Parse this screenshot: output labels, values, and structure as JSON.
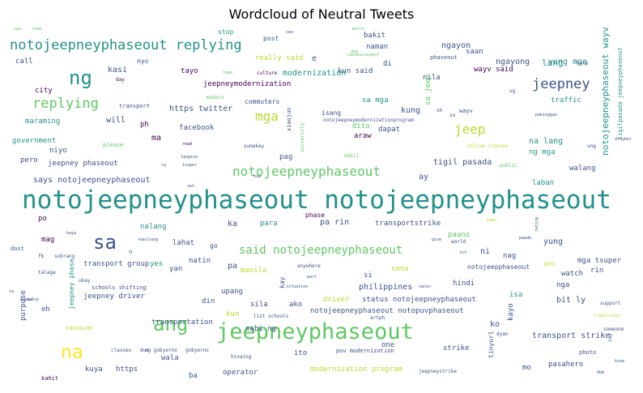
{
  "title": "Wordcloud of Neutral Tweets",
  "palette": [
    "#440154",
    "#3b528b",
    "#21918c",
    "#5ec962",
    "#b5de2b",
    "#fde725"
  ],
  "words": [
    {
      "text": "notojeepneyphaseout notojeepneyphaseout",
      "size": 31,
      "color": "#21918c"
    },
    {
      "text": "jeepneyphaseout",
      "size": 27,
      "color": "#5ec962"
    },
    {
      "text": "ang",
      "size": 24,
      "color": "#5ec962"
    },
    {
      "text": "sa",
      "size": 24,
      "color": "#3b528b"
    },
    {
      "text": "ng",
      "size": 24,
      "color": "#21918c"
    },
    {
      "text": "na",
      "size": 23,
      "color": "#fde725"
    },
    {
      "text": "notojeepneyphaseout replying",
      "size": 17,
      "color": "#21918c"
    },
    {
      "text": "replying",
      "size": 17,
      "color": "#5ec962"
    },
    {
      "text": "jeepney",
      "size": 17,
      "color": "#3b528b"
    },
    {
      "text": "jeep",
      "size": 16,
      "color": "#b5de2b"
    },
    {
      "text": "notojeepneyphaseout",
      "size": 16,
      "color": "#5ec962"
    },
    {
      "text": "said notojeepneyphaseout",
      "size": 14,
      "color": "#5ec962"
    },
    {
      "text": "mga",
      "size": 16,
      "color": "#b5de2b"
    },
    {
      "text": "notojeepneyphaseout wayv",
      "size": 11,
      "color": "#21918c"
    },
    {
      "text": "tigilpasada jeepneyphaseout",
      "size": 7,
      "color": "#21918c"
    },
    {
      "text": "yung mga",
      "size": 10,
      "color": "#21918c"
    },
    {
      "text": "ngayong",
      "size": 10,
      "color": "#3b528b"
    },
    {
      "text": "ngayon",
      "size": 10,
      "color": "#3b528b"
    },
    {
      "text": "saan",
      "size": 9,
      "color": "#3b528b"
    },
    {
      "text": "phaseout",
      "size": 7,
      "color": "#3b528b"
    },
    {
      "text": "bakit",
      "size": 9,
      "color": "#3b528b"
    },
    {
      "text": "naman",
      "size": 9,
      "color": "#3b528b"
    },
    {
      "text": "di",
      "size": 9,
      "color": "#3b528b"
    },
    {
      "text": "kun said",
      "size": 9,
      "color": "#3b528b"
    },
    {
      "text": "modernization",
      "size": 10,
      "color": "#21918c"
    },
    {
      "text": "jeepneymodernization",
      "size": 9,
      "color": "#440154"
    },
    {
      "text": "really said",
      "size": 9,
      "color": "#b5de2b"
    },
    {
      "text": "e",
      "size": 10,
      "color": "#3b528b"
    },
    {
      "text": "nakakaiungkot",
      "size": 5,
      "color": "#5ec962"
    },
    {
      "text": "dae",
      "size": 5,
      "color": "#5ec962"
    },
    {
      "text": "march",
      "size": 5,
      "color": "#5ec962"
    },
    {
      "text": "see",
      "size": 5,
      "color": "#3b528b"
    },
    {
      "text": "post",
      "size": 8,
      "color": "#3b528b"
    },
    {
      "text": "stop",
      "size": 8,
      "color": "#21918c"
    },
    {
      "text": "stem",
      "size": 5,
      "color": "#5ec962"
    },
    {
      "text": "call",
      "size": 9,
      "color": "#3b528b"
    },
    {
      "text": "nyo",
      "size": 8,
      "color": "#3b528b"
    },
    {
      "text": "kasi",
      "size": 10,
      "color": "#3b528b"
    },
    {
      "text": "tayo",
      "size": 9,
      "color": "#440154"
    },
    {
      "text": "tama",
      "size": 5,
      "color": "#5ec962"
    },
    {
      "text": "culture",
      "size": 6,
      "color": "#440154"
    },
    {
      "text": "day",
      "size": 6,
      "color": "#440154"
    },
    {
      "text": "city",
      "size": 9,
      "color": "#440154"
    },
    {
      "text": "https twitter",
      "size": 10,
      "color": "#3b528b"
    },
    {
      "text": "transport",
      "size": 7,
      "color": "#3b528b"
    },
    {
      "text": "will",
      "size": 10,
      "color": "#3b528b"
    },
    {
      "text": "maraming",
      "size": 9,
      "color": "#21918c"
    },
    {
      "text": "commuters",
      "size": 8,
      "color": "#3b528b"
    },
    {
      "text": "modern",
      "size": 6,
      "color": "#5ec962"
    },
    {
      "text": "xiaojun",
      "size": 7,
      "color": "#3b528b"
    },
    {
      "text": "university",
      "size": 6,
      "color": "#5ec962"
    },
    {
      "text": "isang",
      "size": 8,
      "color": "#3b528b"
    },
    {
      "text": "notojeepneymodernizationprogram",
      "size": 6,
      "color": "#3b528b"
    },
    {
      "text": "sa mga",
      "size": 9,
      "color": "#21918c"
    },
    {
      "text": "nila",
      "size": 9,
      "color": "#3b528b"
    },
    {
      "text": "sa jeep",
      "size": 9,
      "color": "#5ec962"
    },
    {
      "text": "kung",
      "size": 10,
      "color": "#3b528b"
    },
    {
      "text": "oh",
      "size": 6,
      "color": "#3b528b"
    },
    {
      "text": "so",
      "size": 6,
      "color": "#3b528b"
    },
    {
      "text": "wayv",
      "size": 7,
      "color": "#3b528b"
    },
    {
      "text": "wayv said",
      "size": 9,
      "color": "#440154"
    },
    {
      "text": "lang",
      "size": 11,
      "color": "#21918c"
    },
    {
      "text": "traffic",
      "size": 9,
      "color": "#21918c"
    },
    {
      "text": "ug",
      "size": 6,
      "color": "#3b528b"
    },
    {
      "text": "help",
      "size": 6,
      "color": "#3b528b"
    },
    {
      "text": "new",
      "size": 5,
      "color": "#5ec962"
    },
    {
      "text": "ph",
      "size": 9,
      "color": "#440154"
    },
    {
      "text": "facebook",
      "size": 9,
      "color": "#3b528b"
    },
    {
      "text": "ma",
      "size": 10,
      "color": "#440154"
    },
    {
      "text": "araw",
      "size": 9,
      "color": "#440154"
    },
    {
      "text": "dapat",
      "size": 9,
      "color": "#3b528b"
    },
    {
      "text": "dito",
      "size": 9,
      "color": "#5ec962"
    },
    {
      "text": "pakinggan",
      "size": 5,
      "color": "#3b528b"
    },
    {
      "text": "government",
      "size": 9,
      "color": "#21918c"
    },
    {
      "text": "please",
      "size": 7,
      "color": "#5ec962"
    },
    {
      "text": "read",
      "size": 5,
      "color": "#440154"
    },
    {
      "text": "sumakay",
      "size": 6,
      "color": "#3b528b"
    },
    {
      "text": "niyo",
      "size": 9,
      "color": "#3b528b"
    },
    {
      "text": "pero",
      "size": 9,
      "color": "#3b528b"
    },
    {
      "text": "jeepney phaseout",
      "size": 9,
      "color": "#3b528b"
    },
    {
      "text": "tangina",
      "size": 5,
      "color": "#3b528b"
    },
    {
      "text": "tsuper",
      "size": 5,
      "color": "#3b528b"
    },
    {
      "text": "ra",
      "size": 5,
      "color": "#3b528b"
    },
    {
      "text": "pag",
      "size": 9,
      "color": "#3b528b"
    },
    {
      "text": "dahil",
      "size": 6,
      "color": "#5ec962"
    },
    {
      "text": "online classes",
      "size": 6,
      "color": "#b5de2b"
    },
    {
      "text": "na lang",
      "size": 10,
      "color": "#21918c"
    },
    {
      "text": "ng mga",
      "size": 9,
      "color": "#21918c"
    },
    {
      "text": "ung",
      "size": 6,
      "color": "#3b528b"
    },
    {
      "text": "drayber",
      "size": 5,
      "color": "#3b528b"
    },
    {
      "text": "public",
      "size": 6,
      "color": "#5ec962"
    },
    {
      "text": "walang",
      "size": 9,
      "color": "#3b528b"
    },
    {
      "text": "says notojeepneyphaseout",
      "size": 10,
      "color": "#3b528b"
    },
    {
      "text": "ay",
      "size": 10,
      "color": "#3b528b"
    },
    {
      "text": "tigil pasada",
      "size": 10,
      "color": "#3b528b"
    },
    {
      "text": "laban",
      "size": 9,
      "color": "#21918c"
    },
    {
      "text": "set",
      "size": 5,
      "color": "#3b528b"
    },
    {
      "text": "how",
      "size": 5,
      "color": "#3b528b"
    },
    {
      "text": "po",
      "size": 9,
      "color": "#440154"
    },
    {
      "text": "phase",
      "size": 8,
      "color": "#440154"
    },
    {
      "text": "pa rin",
      "size": 10,
      "color": "#3b528b"
    },
    {
      "text": "nalang",
      "size": 9,
      "color": "#21918c"
    },
    {
      "text": "ka",
      "size": 10,
      "color": "#3b528b"
    },
    {
      "text": "para",
      "size": 9,
      "color": "#21918c"
    },
    {
      "text": "transportstrike",
      "size": 9,
      "color": "#3b528b"
    },
    {
      "text": "bago",
      "size": 5,
      "color": "#b5de2b"
    },
    {
      "text": "rating",
      "size": 5,
      "color": "#3b528b"
    },
    {
      "text": "kaya",
      "size": 5,
      "color": "#3b528b"
    },
    {
      "text": "kanilang",
      "size": 5,
      "color": "#3b528b"
    },
    {
      "text": "mag",
      "size": 9,
      "color": "#440154"
    },
    {
      "text": "lahat",
      "size": 9,
      "color": "#3b528b"
    },
    {
      "text": "go",
      "size": 8,
      "color": "#3b528b"
    },
    {
      "text": "give",
      "size": 5,
      "color": "#3b528b"
    },
    {
      "text": "world",
      "size": 6,
      "color": "#3b528b"
    },
    {
      "text": "pwede",
      "size": 5,
      "color": "#3b528b"
    },
    {
      "text": "yung",
      "size": 10,
      "color": "#3b528b"
    },
    {
      "text": "paano",
      "size": 9,
      "color": "#5ec962"
    },
    {
      "text": "ni",
      "size": 10,
      "color": "#3b528b"
    },
    {
      "text": "nag",
      "size": 9,
      "color": "#3b528b"
    },
    {
      "text": "dost",
      "size": 7,
      "color": "#3b528b"
    },
    {
      "text": "fb",
      "size": 6,
      "color": "#3b528b"
    },
    {
      "text": "sobrang",
      "size": 6,
      "color": "#3b528b"
    },
    {
      "text": "talaga",
      "size": 6,
      "color": "#3b528b"
    },
    {
      "text": "n",
      "size": 7,
      "color": "#3b528b"
    },
    {
      "text": "txt",
      "size": 5,
      "color": "#3b528b"
    },
    {
      "text": "transport group",
      "size": 9,
      "color": "#3b528b"
    },
    {
      "text": "yes",
      "size": 9,
      "color": "#21918c"
    },
    {
      "text": "yan",
      "size": 9,
      "color": "#3b528b"
    },
    {
      "text": "natin",
      "size": 9,
      "color": "#3b528b"
    },
    {
      "text": "pa",
      "size": 10,
      "color": "#3b528b"
    },
    {
      "text": "manila",
      "size": 9,
      "color": "#b5de2b"
    },
    {
      "text": "anywhere",
      "size": 6,
      "color": "#3b528b"
    },
    {
      "text": "kay",
      "size": 8,
      "color": "#3b528b"
    },
    {
      "text": "si",
      "size": 9,
      "color": "#3b528b"
    },
    {
      "text": "sana",
      "size": 9,
      "color": "#b5de2b"
    },
    {
      "text": "notojeepphaseout",
      "size": 8,
      "color": "#3b528b"
    },
    {
      "text": "ano",
      "size": 8,
      "color": "#b5de2b"
    },
    {
      "text": "mga tsuper",
      "size": 9,
      "color": "#3b528b"
    },
    {
      "text": "rin",
      "size": 9,
      "color": "#3b528b"
    },
    {
      "text": "watch",
      "size": 9,
      "color": "#3b528b"
    },
    {
      "text": "nga",
      "size": 9,
      "color": "#3b528b"
    },
    {
      "text": "okay",
      "size": 6,
      "color": "#3b528b"
    },
    {
      "text": "jeepney phase",
      "size": 8,
      "color": "#21918c"
    },
    {
      "text": "schools shifting",
      "size": 7,
      "color": "#3b528b"
    },
    {
      "text": "part",
      "size": 5,
      "color": "#3b528b"
    },
    {
      "text": "situation",
      "size": 5,
      "color": "#3b528b"
    },
    {
      "text": "philippines",
      "size": 10,
      "color": "#3b528b"
    },
    {
      "text": "hindi",
      "size": 9,
      "color": "#3b528b"
    },
    {
      "text": "ta",
      "size": 5,
      "color": "#3b528b"
    },
    {
      "text": "tuloy",
      "size": 5,
      "color": "#3b528b"
    },
    {
      "text": "purpose",
      "size": 9,
      "color": "#3b528b"
    },
    {
      "text": "jeepney driver",
      "size": 9,
      "color": "#3b528b"
    },
    {
      "text": "upang",
      "size": 9,
      "color": "#3b528b"
    },
    {
      "text": "din",
      "size": 9,
      "color": "#3b528b"
    },
    {
      "text": "sila",
      "size": 9,
      "color": "#3b528b"
    },
    {
      "text": "ako",
      "size": 9,
      "color": "#3b528b"
    },
    {
      "text": "driver",
      "size": 9,
      "color": "#b5de2b"
    },
    {
      "text": "status notojeepneyphaseout",
      "size": 9,
      "color": "#3b528b"
    },
    {
      "text": "nanin",
      "size": 5,
      "color": "#3b528b"
    },
    {
      "text": "isa",
      "size": 9,
      "color": "#21918c"
    },
    {
      "text": "eh",
      "size": 9,
      "color": "#3b528b"
    },
    {
      "text": "kapwa",
      "size": 5,
      "color": "#3b528b"
    },
    {
      "text": "kun",
      "size": 9,
      "color": "#b5de2b"
    },
    {
      "text": "list schools",
      "size": 6,
      "color": "#3b528b"
    },
    {
      "text": "notojeepneyphaseout notopuvphaseout",
      "size": 9,
      "color": "#3b528b"
    },
    {
      "text": "artph",
      "size": 6,
      "color": "#3b528b"
    },
    {
      "text": "ko",
      "size": 10,
      "color": "#3b528b"
    },
    {
      "text": "kayo",
      "size": 9,
      "color": "#3b528b"
    },
    {
      "text": "bit ly",
      "size": 10,
      "color": "#3b528b"
    },
    {
      "text": "support",
      "size": 6,
      "color": "#3b528b"
    },
    {
      "text": "traditional",
      "size": 5,
      "color": "#b5de2b"
    },
    {
      "text": "sasakyan",
      "size": 7,
      "color": "#b5de2b"
    },
    {
      "text": "transportation",
      "size": 9,
      "color": "#3b528b"
    },
    {
      "text": "sabi ng",
      "size": 9,
      "color": "#3b528b"
    },
    {
      "text": "one",
      "size": 9,
      "color": "#3b528b"
    },
    {
      "text": "dyan",
      "size": 6,
      "color": "#3b528b"
    },
    {
      "text": "transport strike",
      "size": 10,
      "color": "#3b528b"
    },
    {
      "text": "tinyurl",
      "size": 8,
      "color": "#3b528b"
    },
    {
      "text": "say",
      "size": 6,
      "color": "#3b528b"
    },
    {
      "text": "photo",
      "size": 7,
      "color": "#3b528b"
    },
    {
      "text": "someone",
      "size": 6,
      "color": "#3b528b"
    },
    {
      "text": "wala",
      "size": 9,
      "color": "#3b528b"
    },
    {
      "text": "gobyerno",
      "size": 6,
      "color": "#3b528b"
    },
    {
      "text": "hinaing",
      "size": 6,
      "color": "#3b528b"
    },
    {
      "text": "ito",
      "size": 9,
      "color": "#3b528b"
    },
    {
      "text": "puv modernization",
      "size": 7,
      "color": "#3b528b"
    },
    {
      "text": "strike",
      "size": 9,
      "color": "#3b528b"
    },
    {
      "text": "know",
      "size": 5,
      "color": "#3b528b"
    },
    {
      "text": "kuya",
      "size": 9,
      "color": "#3b528b"
    },
    {
      "text": "https",
      "size": 9,
      "color": "#3b528b"
    },
    {
      "text": "classes",
      "size": 6,
      "color": "#3b528b"
    },
    {
      "text": "due",
      "size": 6,
      "color": "#3b528b"
    },
    {
      "text": "ng gobyerno",
      "size": 6,
      "color": "#3b528b"
    },
    {
      "text": "ba",
      "size": 9,
      "color": "#3b528b"
    },
    {
      "text": "operator",
      "size": 9,
      "color": "#3b528b"
    },
    {
      "text": "modernization program",
      "size": 9,
      "color": "#b5de2b"
    },
    {
      "text": "mo",
      "size": 9,
      "color": "#3b528b"
    },
    {
      "text": "pasahero",
      "size": 9,
      "color": "#3b528b"
    },
    {
      "text": "jeepneystrike",
      "size": 6,
      "color": "#3b528b"
    },
    {
      "text": "bbm",
      "size": 5,
      "color": "#3b528b"
    },
    {
      "text": "kahit",
      "size": 7,
      "color": "#440154"
    }
  ]
}
